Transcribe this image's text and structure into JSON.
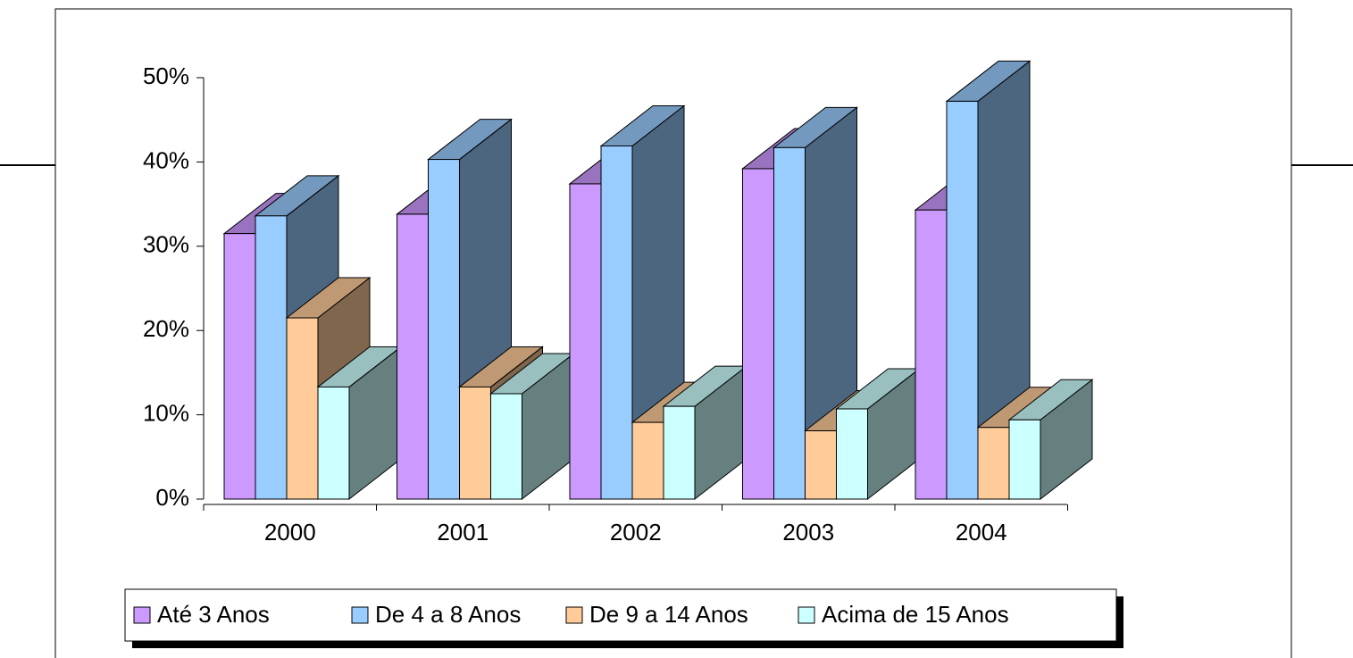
{
  "chart_data": {
    "type": "bar3d",
    "categories": [
      "2000",
      "2001",
      "2002",
      "2003",
      "2004"
    ],
    "series": [
      {
        "name": "Até 3 Anos",
        "color": "#cc99ff",
        "values": [
          31.5,
          33.8,
          37.4,
          39.2,
          34.3
        ]
      },
      {
        "name": "De 4 a 8 Anos",
        "color": "#99ccff",
        "values": [
          33.6,
          40.3,
          41.9,
          41.7,
          47.2
        ]
      },
      {
        "name": "De 9 a 14 Anos",
        "color": "#ffcc99",
        "values": [
          21.5,
          13.3,
          9.1,
          8.1,
          8.5
        ]
      },
      {
        "name": "Acima de 15 Anos",
        "color": "#ccffff",
        "values": [
          13.3,
          12.5,
          11.0,
          10.7,
          9.4
        ]
      }
    ],
    "ylim": [
      0,
      50
    ],
    "yticks": [
      {
        "value": 0,
        "label": "0%"
      },
      {
        "value": 10,
        "label": "10%"
      },
      {
        "value": 20,
        "label": "20%"
      },
      {
        "value": 30,
        "label": "30%"
      },
      {
        "value": 40,
        "label": "40%"
      },
      {
        "value": 50,
        "label": "50%"
      }
    ]
  }
}
